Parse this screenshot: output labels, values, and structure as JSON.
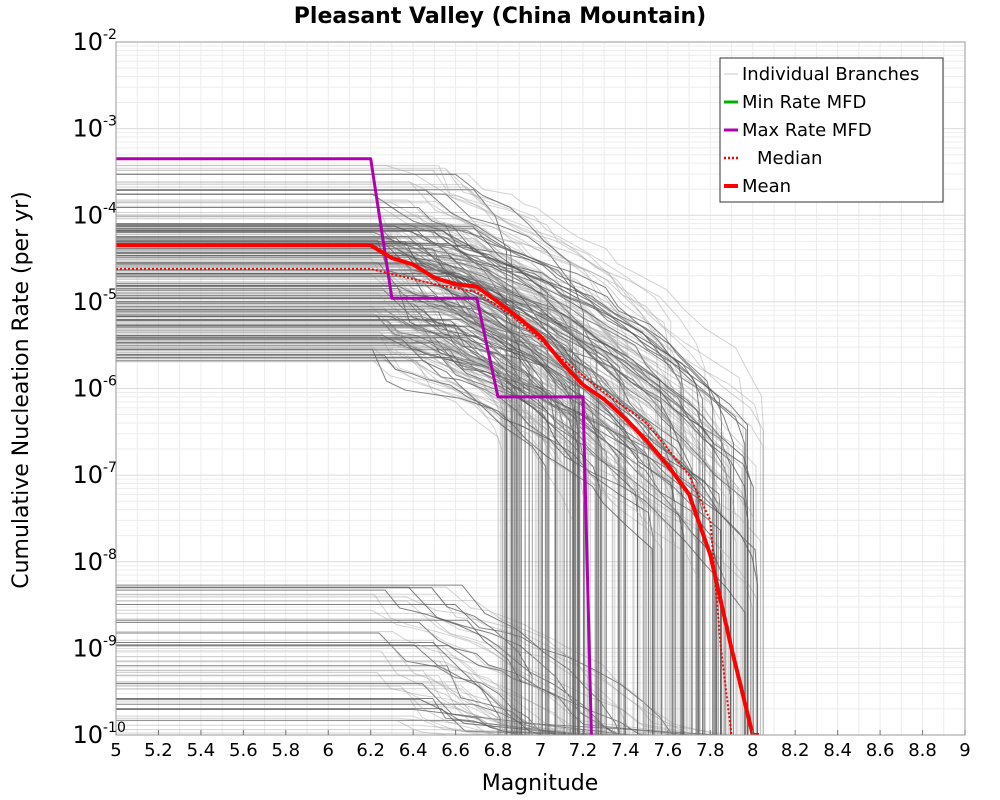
{
  "chart_data": {
    "type": "line",
    "title": "Pleasant Valley (China Mountain)",
    "xlabel": "Magnitude",
    "ylabel": "Cumulative Nucleation Rate (per yr)",
    "xlim": [
      5,
      9
    ],
    "ylim": [
      1e-10,
      0.01
    ],
    "yscale": "log",
    "grid": true,
    "legend_position": "top-right",
    "x_ticks": [
      "5",
      "5.2",
      "5.4",
      "5.6",
      "5.8",
      "6",
      "6.2",
      "6.4",
      "6.6",
      "6.8",
      "7",
      "7.2",
      "7.4",
      "7.6",
      "7.8",
      "8",
      "8.2",
      "8.4",
      "8.6",
      "8.8",
      "9"
    ],
    "y_ticks": [
      {
        "base": "10",
        "exp": "-2",
        "value": 0.01
      },
      {
        "base": "10",
        "exp": "-3",
        "value": 0.001
      },
      {
        "base": "10",
        "exp": "-4",
        "value": 0.0001
      },
      {
        "base": "10",
        "exp": "-5",
        "value": 1e-05
      },
      {
        "base": "10",
        "exp": "-6",
        "value": 1e-06
      },
      {
        "base": "10",
        "exp": "-7",
        "value": 1e-07
      },
      {
        "base": "10",
        "exp": "-8",
        "value": 1e-08
      },
      {
        "base": "10",
        "exp": "-9",
        "value": 1e-09
      },
      {
        "base": "10",
        "exp": "-10",
        "value": 1e-10
      }
    ],
    "legend": [
      {
        "key": "branches",
        "label": "Individual Branches",
        "color": "#c8c8c8",
        "style": "thin"
      },
      {
        "key": "min",
        "label": "Min Rate MFD",
        "color": "#00b000",
        "style": "solid"
      },
      {
        "key": "max",
        "label": "Max Rate MFD",
        "color": "#b000b0",
        "style": "solid"
      },
      {
        "key": "median",
        "label": "Median",
        "color": "#ff0000",
        "style": "dotted"
      },
      {
        "key": "mean",
        "label": "Mean",
        "color": "#ff0000",
        "style": "thick"
      }
    ],
    "series": [
      {
        "name": "Max Rate MFD",
        "color": "#b000b0",
        "x": [
          5.0,
          6.2,
          6.3,
          6.7,
          6.8,
          7.2,
          7.24,
          7.24
        ],
        "y": [
          0.00045,
          0.00045,
          1.1e-05,
          1.1e-05,
          8e-07,
          8e-07,
          1e-10,
          1e-10
        ]
      },
      {
        "name": "Median",
        "color": "#ff0000",
        "x": [
          5.0,
          6.2,
          6.3,
          6.5,
          6.7,
          6.9,
          7.1,
          7.3,
          7.5,
          7.7,
          7.8,
          7.85,
          7.9,
          7.9
        ],
        "y": [
          2.4e-05,
          2.4e-05,
          2.1e-05,
          1.6e-05,
          1.3e-05,
          6e-06,
          2.2e-06,
          9e-07,
          4e-07,
          1e-07,
          3e-08,
          1e-09,
          1e-10,
          1e-10
        ]
      },
      {
        "name": "Mean",
        "color": "#ff0000",
        "x": [
          5.0,
          6.2,
          6.3,
          6.4,
          6.5,
          6.6,
          6.7,
          6.8,
          6.9,
          7.0,
          7.1,
          7.2,
          7.3,
          7.4,
          7.5,
          7.6,
          7.7,
          7.8,
          7.9,
          8.0,
          8.03
        ],
        "y": [
          4.5e-05,
          4.5e-05,
          3.2e-05,
          2.7e-05,
          1.9e-05,
          1.6e-05,
          1.5e-05,
          1e-05,
          6.5e-06,
          4e-06,
          2e-06,
          1.1e-06,
          7.5e-07,
          4.5e-07,
          2.5e-07,
          1.3e-07,
          6e-08,
          1.2e-08,
          1e-09,
          1e-10,
          1e-10
        ]
      }
    ]
  }
}
